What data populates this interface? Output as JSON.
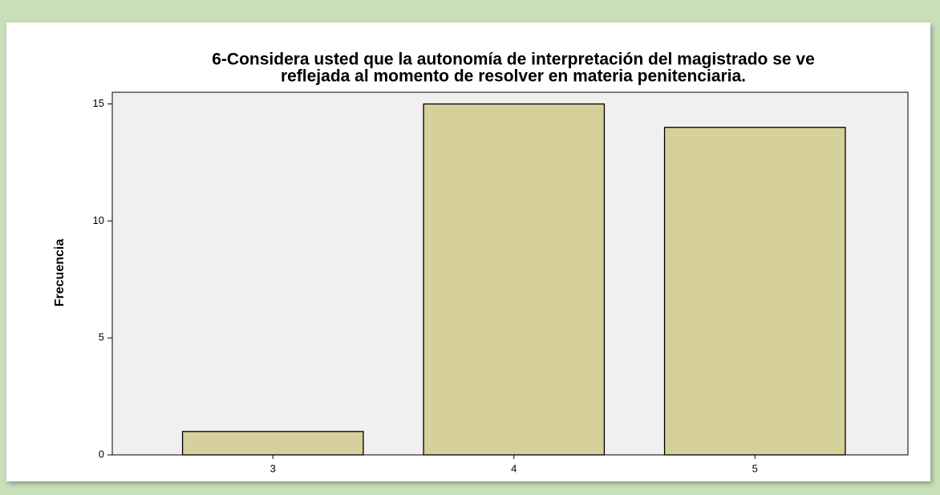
{
  "chart_data": {
    "type": "bar",
    "title": [
      "6-Considera usted que la autonomía de interpretación del magistrado se ve",
      "reflejada al momento de resolver en materia penitenciaria."
    ],
    "y_label": "Frecuencia",
    "categories": [
      "3",
      "4",
      "5"
    ],
    "values": [
      1,
      15,
      14
    ],
    "color": "#d6d09b",
    "ylim": [
      0,
      15.5
    ],
    "yticks": [
      0,
      5,
      10,
      15
    ],
    "grid": false
  }
}
